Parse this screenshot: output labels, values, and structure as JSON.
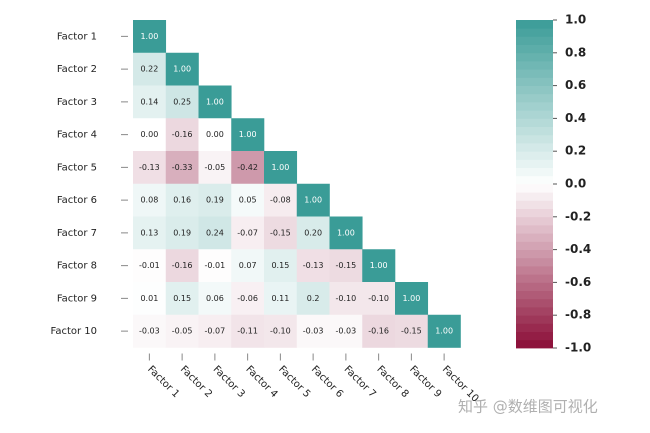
{
  "chart_data": {
    "type": "heatmap",
    "x_categories": [
      "Factor 1",
      "Factor 2",
      "Factor 3",
      "Factor 4",
      "Factor 5",
      "Factor 6",
      "Factor 7",
      "Factor 8",
      "Factor 9",
      "Factor 10"
    ],
    "y_categories": [
      "Factor 1",
      "Factor 2",
      "Factor 3",
      "Factor 4",
      "Factor 5",
      "Factor 6",
      "Factor 7",
      "Factor 8",
      "Factor 9",
      "Factor 10"
    ],
    "values": [
      [
        1.0,
        null,
        null,
        null,
        null,
        null,
        null,
        null,
        null,
        null
      ],
      [
        0.22,
        1.0,
        null,
        null,
        null,
        null,
        null,
        null,
        null,
        null
      ],
      [
        0.14,
        0.25,
        1.0,
        null,
        null,
        null,
        null,
        null,
        null,
        null
      ],
      [
        0.0,
        -0.16,
        0.0,
        1.0,
        null,
        null,
        null,
        null,
        null,
        null
      ],
      [
        -0.13,
        -0.33,
        -0.05,
        -0.42,
        1.0,
        null,
        null,
        null,
        null,
        null
      ],
      [
        0.08,
        0.16,
        0.19,
        0.05,
        -0.08,
        1.0,
        null,
        null,
        null,
        null
      ],
      [
        0.13,
        0.19,
        0.24,
        -0.07,
        -0.15,
        0.2,
        1.0,
        null,
        null,
        null
      ],
      [
        -0.01,
        -0.16,
        -0.01,
        0.07,
        0.15,
        -0.13,
        -0.15,
        1.0,
        null,
        null
      ],
      [
        0.01,
        0.15,
        0.06,
        -0.06,
        0.11,
        0.2,
        -0.1,
        -0.1,
        1.0,
        null
      ],
      [
        -0.03,
        -0.05,
        -0.07,
        -0.11,
        -0.1,
        -0.03,
        -0.03,
        -0.16,
        -0.15,
        1.0
      ]
    ],
    "value_labels": [
      [
        "1.00",
        null,
        null,
        null,
        null,
        null,
        null,
        null,
        null,
        null
      ],
      [
        "0.22",
        "1.00",
        null,
        null,
        null,
        null,
        null,
        null,
        null,
        null
      ],
      [
        "0.14",
        "0.25",
        "1.00",
        null,
        null,
        null,
        null,
        null,
        null,
        null
      ],
      [
        "0.00",
        "-0.16",
        "0.00",
        "1.00",
        null,
        null,
        null,
        null,
        null,
        null
      ],
      [
        "-0.13",
        "-0.33",
        "-0.05",
        "-0.42",
        "1.00",
        null,
        null,
        null,
        null,
        null
      ],
      [
        "0.08",
        "0.16",
        "0.19",
        "0.05",
        "-0.08",
        "1.00",
        null,
        null,
        null,
        null
      ],
      [
        "0.13",
        "0.19",
        "0.24",
        "-0.07",
        "-0.15",
        "0.20",
        "1.00",
        null,
        null,
        null
      ],
      [
        "-0.01",
        "-0.16",
        "-0.01",
        "0.07",
        "0.15",
        "-0.13",
        "-0.15",
        "1.00",
        null,
        null
      ],
      [
        "0.01",
        "0.15",
        "0.06",
        "-0.06",
        "0.11",
        "0.2",
        "-0.10",
        "-0.10",
        "1.00",
        null
      ],
      [
        "-0.03",
        "-0.05",
        "-0.07",
        "-0.11",
        "-0.10",
        "-0.03",
        "-0.03",
        "-0.16",
        "-0.15",
        "1.00"
      ]
    ],
    "clim": [
      -1,
      1
    ],
    "cticks": [
      {
        "value": 1,
        "label": "1.0"
      },
      {
        "value": 0.8,
        "label": "0.8"
      },
      {
        "value": 0.6,
        "label": "0.6"
      },
      {
        "value": 0.4,
        "label": "0.4"
      },
      {
        "value": 0.2,
        "label": "0.2"
      },
      {
        "value": 0,
        "label": "0.0"
      },
      {
        "value": -0.2,
        "label": "-0.2"
      },
      {
        "value": -0.4,
        "label": "-0.4"
      },
      {
        "value": -0.6,
        "label": "-0.6"
      },
      {
        "value": -0.8,
        "label": "-0.8"
      },
      {
        "value": -1,
        "label": "-1.0"
      }
    ],
    "colormap": [
      "#8a0c36",
      "#ffffff",
      "#3a9c97"
    ],
    "annotation": "知乎 @数维图可视化"
  }
}
